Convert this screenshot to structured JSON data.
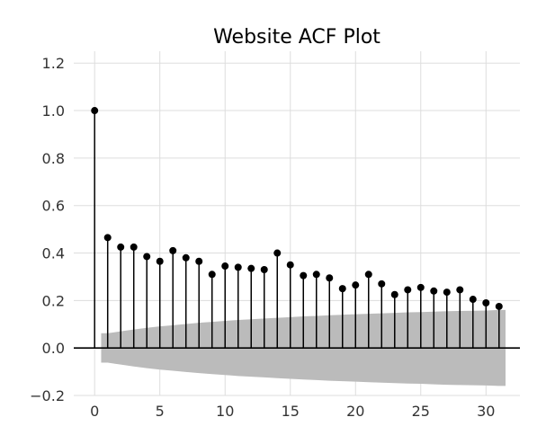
{
  "chart_data": {
    "type": "stem",
    "title": "Website ACF Plot",
    "xlabel": "",
    "ylabel": "",
    "xlim": [
      -1.6,
      32.6
    ],
    "ylim": [
      -0.2,
      1.25
    ],
    "x_ticks": [
      0,
      5,
      10,
      15,
      20,
      25,
      30
    ],
    "x_tick_labels": [
      "0",
      "5",
      "10",
      "15",
      "20",
      "25",
      "30"
    ],
    "y_ticks": [
      -0.2,
      0.0,
      0.2,
      0.4,
      0.6,
      0.8,
      1.0,
      1.2
    ],
    "y_tick_labels": [
      "−0.2",
      "0.0",
      "0.2",
      "0.4",
      "0.6",
      "0.8",
      "1.0",
      "1.2"
    ],
    "grid": true,
    "lags": [
      0,
      1,
      2,
      3,
      4,
      5,
      6,
      7,
      8,
      9,
      10,
      11,
      12,
      13,
      14,
      15,
      16,
      17,
      18,
      19,
      20,
      21,
      22,
      23,
      24,
      25,
      26,
      27,
      28,
      29,
      30,
      31
    ],
    "acf": [
      1.0,
      0.465,
      0.425,
      0.425,
      0.385,
      0.365,
      0.41,
      0.38,
      0.365,
      0.31,
      0.345,
      0.34,
      0.335,
      0.33,
      0.4,
      0.35,
      0.305,
      0.31,
      0.295,
      0.25,
      0.265,
      0.31,
      0.27,
      0.225,
      0.245,
      0.255,
      0.24,
      0.235,
      0.245,
      0.205,
      0.19,
      0.175
    ],
    "confidence_band": {
      "lags": [
        0.5,
        1,
        2,
        3,
        4,
        5,
        6,
        7,
        8,
        9,
        10,
        11,
        12,
        13,
        14,
        15,
        16,
        17,
        18,
        19,
        20,
        21,
        22,
        23,
        24,
        25,
        26,
        27,
        28,
        29,
        30,
        31,
        31.5
      ],
      "upper": [
        0.062,
        0.062,
        0.07,
        0.078,
        0.085,
        0.091,
        0.096,
        0.101,
        0.106,
        0.11,
        0.114,
        0.118,
        0.121,
        0.124,
        0.127,
        0.13,
        0.133,
        0.135,
        0.138,
        0.14,
        0.142,
        0.144,
        0.146,
        0.148,
        0.15,
        0.151,
        0.153,
        0.155,
        0.156,
        0.157,
        0.158,
        0.16,
        0.16
      ]
    },
    "colors": {
      "stem": "#000000",
      "marker": "#000000",
      "band": "#bbbbbb",
      "grid": "#dddddd",
      "zero_line": "#000000"
    }
  }
}
